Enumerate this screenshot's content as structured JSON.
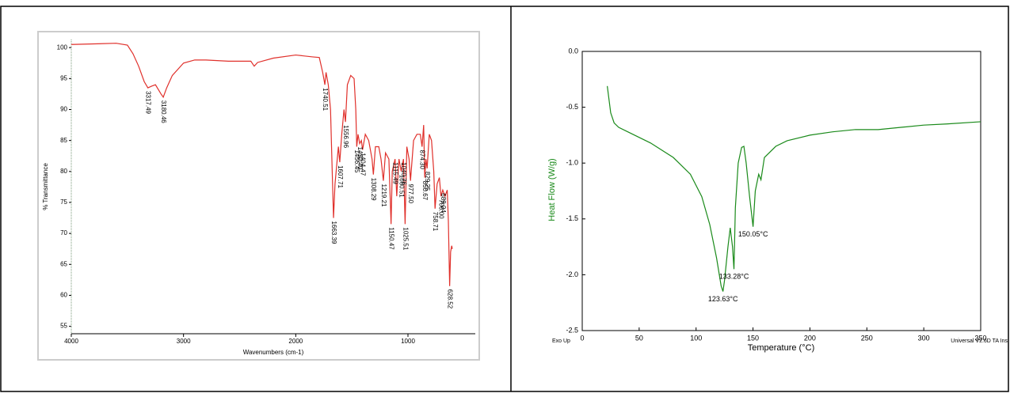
{
  "chart_data": [
    {
      "type": "line",
      "x_label": "Wavenumbers (cm-1)",
      "y_label": "% Transmittance",
      "xlim": [
        4000,
        400
      ],
      "ylim": [
        53.8,
        101.3
      ],
      "xticks": [
        4000,
        3000,
        2000,
        1000
      ],
      "yticks": [
        55,
        60,
        65,
        70,
        75,
        80,
        85,
        90,
        95,
        100
      ],
      "x": [
        4000,
        3800,
        3600,
        3500,
        3450,
        3400,
        3350,
        3317.49,
        3280,
        3250,
        3200,
        3180.46,
        3150,
        3100,
        3000,
        2900,
        2800,
        2600,
        2400,
        2370,
        2340,
        2200,
        2000,
        1850,
        1790,
        1760,
        1745,
        1740.51,
        1730,
        1710,
        1690,
        1675,
        1663.39,
        1650,
        1630,
        1620,
        1607.71,
        1590,
        1570,
        1556.96,
        1540,
        1510,
        1480,
        1465,
        1456.45,
        1445,
        1430,
        1415,
        1404.47,
        1380,
        1350,
        1320,
        1308.29,
        1290,
        1260,
        1240,
        1219.21,
        1200,
        1170,
        1150.47,
        1140,
        1115,
        1100,
        1080,
        1060,
        1040,
        1025.51,
        1010,
        990,
        977.5,
        950,
        920,
        890,
        874.3,
        860,
        850.67,
        840,
        829.25,
        810,
        790,
        770,
        758.71,
        740,
        720,
        706,
        690,
        670,
        650,
        640,
        628.52,
        620,
        610,
        605
      ],
      "series": [
        {
          "color": "#e0302b",
          "values": [
            100.5,
            100.6,
            100.7,
            100.4,
            99,
            97,
            94.5,
            93.5,
            93.8,
            94,
            92.5,
            92,
            93.5,
            95.5,
            97.5,
            98,
            98,
            97.8,
            97.8,
            97,
            97.6,
            98.3,
            98.8,
            98.5,
            98.4,
            96,
            94.5,
            94,
            96,
            94,
            90,
            80,
            72.5,
            78,
            82,
            84,
            81.5,
            86,
            90,
            88,
            94,
            95.5,
            95,
            90,
            84,
            86,
            84.5,
            85,
            83.5,
            86,
            85,
            82,
            79.5,
            84,
            84,
            82,
            78.5,
            83,
            82,
            71.5,
            80,
            82,
            76,
            82,
            80,
            82,
            71.5,
            84,
            82,
            78.5,
            85,
            86,
            86,
            84,
            87.5,
            79,
            82,
            80.5,
            86,
            85,
            80,
            74,
            78,
            79,
            76,
            77,
            76,
            77,
            72,
            61.5,
            67,
            68,
            67.5
          ]
        }
      ],
      "peaks": {
        "x": [
          3317.49,
          3180.46,
          1740.51,
          1663.39,
          1607.71,
          1556.96,
          1456.45,
          1430.4,
          1404.47,
          1308.29,
          1219.21,
          1150.47,
          1115.49,
          1060.51,
          1040.76,
          1025.51,
          977.5,
          874.3,
          850.67,
          829.25,
          758.71,
          706,
          689.04,
          628.52
        ],
        "y": [
          93.5,
          92,
          94,
          72.5,
          81.5,
          88,
          84,
          84.5,
          83.5,
          79.5,
          78.5,
          71.5,
          82,
          80,
          82,
          71.5,
          78.5,
          84,
          79,
          80.5,
          74,
          76,
          77,
          61.5
        ],
        "labels": [
          "3317.49",
          "3180.46",
          "1740.51",
          "1663.39",
          "1607.71",
          "1556.96",
          "1456.45",
          "1430.40",
          "1404.47",
          "1308.29",
          "1219.21",
          "1150.47",
          "1115.49",
          "1060.51",
          "1040.76",
          "1025.51",
          "977.50",
          "874.30",
          "850.67",
          "829.25",
          "758.71",
          "706.00",
          "689.04",
          "628.52"
        ]
      }
    },
    {
      "type": "line",
      "x_label": "Temperature (°C)",
      "y_label": "Heat Flow (W/g)",
      "y_label_color": "#1a8a1a",
      "corner_left": "Exo Up",
      "corner_right": "Universal V2.6D TA Ins",
      "xlim": [
        0,
        350
      ],
      "ylim": [
        -2.5,
        0
      ],
      "xticks": [
        0,
        50,
        100,
        150,
        200,
        250,
        300,
        350
      ],
      "yticks": [
        -2.5,
        {
          "value": -2,
          "label": "-2.0"
        },
        -1.5,
        {
          "value": -1,
          "label": "-1.0"
        },
        -0.5,
        {
          "value": 0,
          "label": "0.0"
        }
      ],
      "x": [
        22,
        25,
        28,
        32,
        40,
        60,
        80,
        95,
        105,
        112,
        118,
        122,
        123.63,
        125,
        128,
        130,
        132,
        133.28,
        134.5,
        137,
        140,
        142,
        144,
        147,
        150.05,
        152,
        155,
        157,
        160,
        170,
        180,
        200,
        220,
        240,
        260,
        280,
        300,
        320,
        350
      ],
      "series": [
        {
          "color": "#1a8a1a",
          "values": [
            -0.31,
            -0.55,
            -0.64,
            -0.68,
            -0.72,
            -0.82,
            -0.95,
            -1.1,
            -1.3,
            -1.55,
            -1.85,
            -2.1,
            -2.15,
            -2.05,
            -1.75,
            -1.58,
            -1.75,
            -1.95,
            -1.4,
            -1,
            -0.86,
            -0.85,
            -1,
            -1.3,
            -1.57,
            -1.25,
            -1.1,
            -1.15,
            -0.95,
            -0.85,
            -0.8,
            -0.75,
            -0.72,
            -0.7,
            -0.7,
            -0.68,
            -0.66,
            -0.65,
            -0.63
          ]
        }
      ],
      "peaks": {
        "x": [
          123.63,
          133.28,
          150.05
        ],
        "y": [
          -2.15,
          -1.95,
          -1.57
        ],
        "labels": [
          "123.63°C",
          "133.28°C",
          "150.05°C"
        ]
      }
    }
  ]
}
